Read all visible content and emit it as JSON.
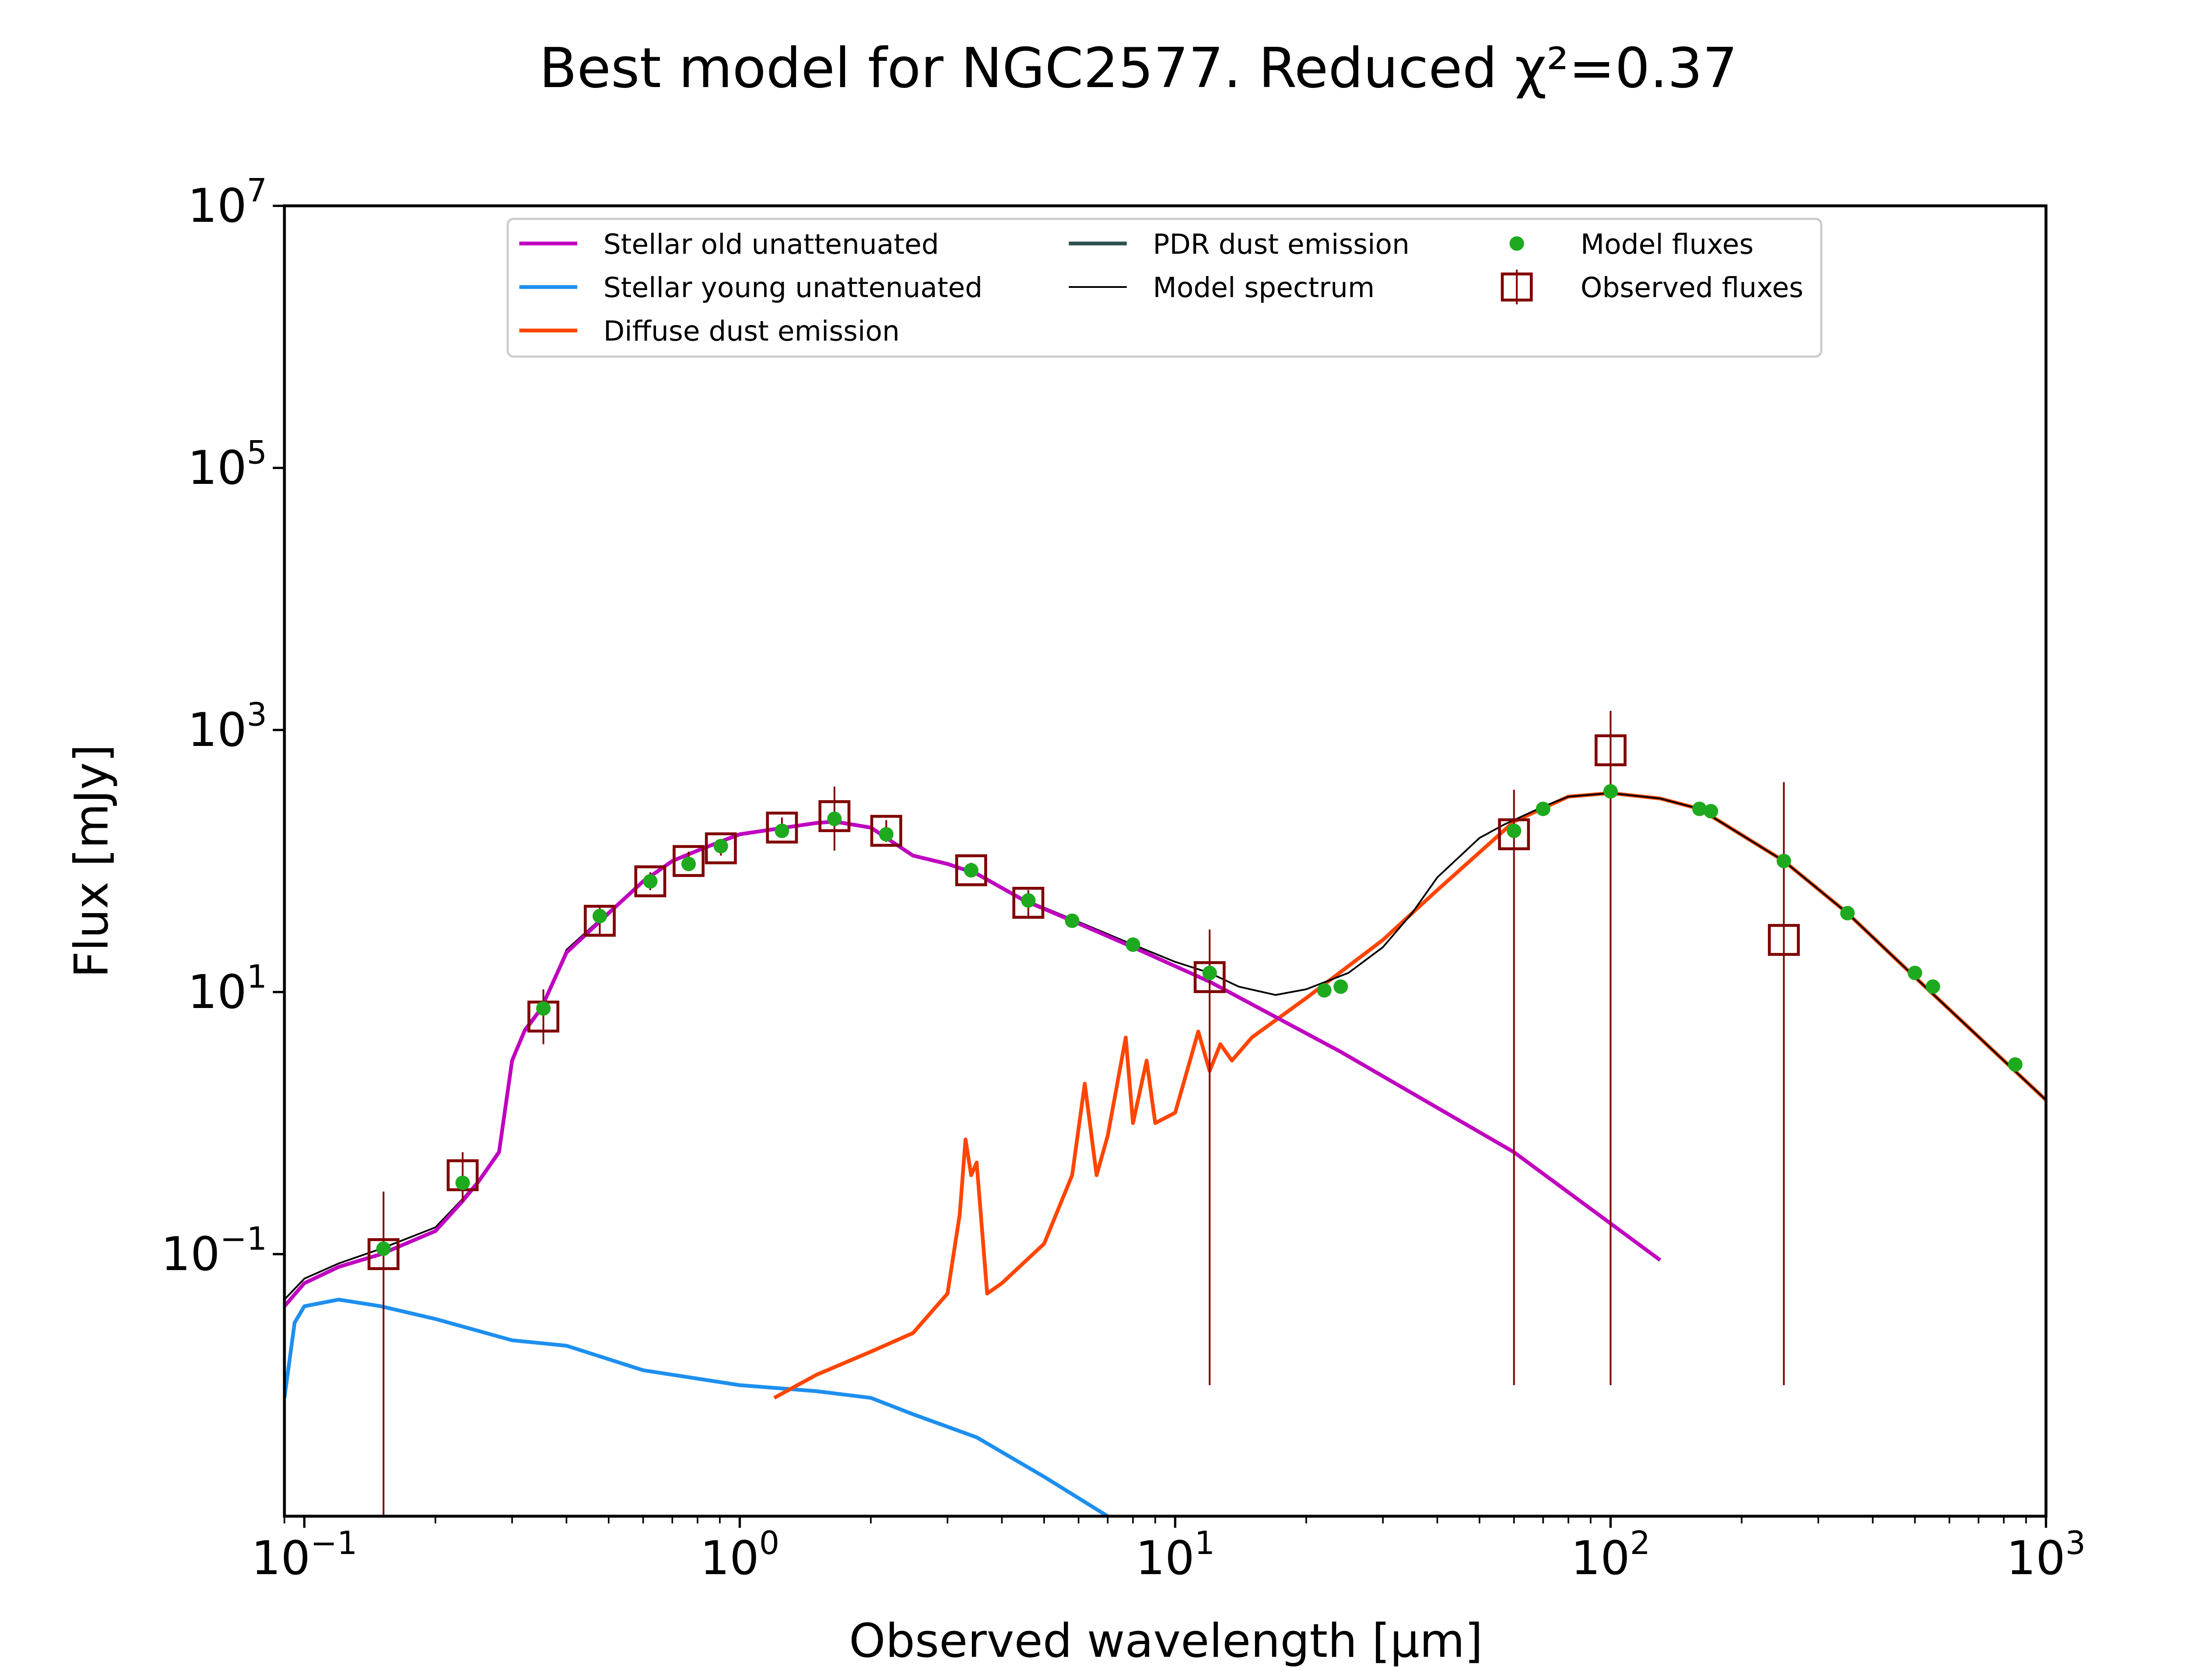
{
  "chart_data": {
    "type": "line",
    "title": "Best model for NGC2577. Reduced χ²=0.37",
    "xlabel": "Observed wavelength [μm]",
    "ylabel": "Flux [mJy]",
    "xscale": "log",
    "yscale": "log",
    "xlim": [
      0.09,
      1000
    ],
    "ylim": [
      0.001,
      10000000
    ],
    "grid": false,
    "legend_position": "top-center",
    "x_ticks": [
      {
        "value": 0.1,
        "base": "10",
        "exp": "−1"
      },
      {
        "value": 1,
        "base": "10",
        "exp": "0"
      },
      {
        "value": 10,
        "base": "10",
        "exp": "1"
      },
      {
        "value": 100,
        "base": "10",
        "exp": "2"
      },
      {
        "value": 1000,
        "base": "10",
        "exp": "3"
      }
    ],
    "y_ticks": [
      {
        "value": 0.1,
        "base": "10",
        "exp": "−1"
      },
      {
        "value": 10,
        "base": "10",
        "exp": "1"
      },
      {
        "value": 1000,
        "base": "10",
        "exp": "3"
      },
      {
        "value": 100000,
        "base": "10",
        "exp": "5"
      },
      {
        "value": 10000000,
        "base": "10",
        "exp": "7"
      }
    ],
    "series": [
      {
        "name": "Stellar old unattenuated",
        "color": "#bf00bf",
        "kind": "line",
        "x": [
          0.09,
          0.1,
          0.12,
          0.15,
          0.2,
          0.23,
          0.25,
          0.28,
          0.3,
          0.32,
          0.35,
          0.4,
          0.5,
          0.6,
          0.7,
          0.8,
          0.9,
          1.0,
          1.2,
          1.5,
          1.65,
          2.0,
          2.5,
          3.0,
          3.5,
          4.5,
          5.8,
          8,
          12,
          24,
          60,
          130
        ],
        "y": [
          0.04,
          0.06,
          0.08,
          0.1,
          0.15,
          0.25,
          0.35,
          0.6,
          3.0,
          5.0,
          7.5,
          20,
          40,
          70,
          100,
          120,
          140,
          160,
          175,
          195,
          200,
          180,
          110,
          95,
          80,
          50,
          35,
          22,
          12,
          3.5,
          0.6,
          0.09
        ]
      },
      {
        "name": "Stellar young unattenuated",
        "color": "#1e8fef",
        "kind": "line",
        "x": [
          0.09,
          0.095,
          0.1,
          0.12,
          0.15,
          0.2,
          0.3,
          0.4,
          0.6,
          1.0,
          1.5,
          2.0,
          2.5,
          3.5,
          5.0,
          7.0
        ],
        "y": [
          0.008,
          0.03,
          0.04,
          0.045,
          0.04,
          0.032,
          0.022,
          0.02,
          0.013,
          0.01,
          0.009,
          0.008,
          0.006,
          0.004,
          0.002,
          0.001
        ]
      },
      {
        "name": "Diffuse dust emission",
        "color": "#ff4500",
        "kind": "line",
        "x": [
          1.2,
          1.5,
          2.0,
          2.5,
          3.0,
          3.2,
          3.3,
          3.4,
          3.5,
          3.7,
          4.0,
          5.0,
          5.8,
          6.2,
          6.6,
          7.0,
          7.7,
          8.0,
          8.6,
          9.0,
          10.0,
          11.3,
          12.0,
          12.7,
          13.5,
          15,
          20,
          30,
          40,
          60,
          80,
          100,
          130,
          160,
          250,
          350,
          500,
          800,
          1000
        ],
        "y": [
          0.008,
          0.012,
          0.018,
          0.025,
          0.05,
          0.2,
          0.75,
          0.4,
          0.5,
          0.05,
          0.06,
          0.12,
          0.4,
          2.0,
          0.4,
          0.8,
          4.5,
          1.0,
          3.0,
          1.0,
          1.2,
          5.0,
          2.5,
          4.0,
          3.0,
          4.5,
          9.0,
          25,
          60,
          200,
          310,
          330,
          300,
          250,
          100,
          40,
          13,
          3.0,
          1.5
        ]
      },
      {
        "name": "PDR dust emission",
        "color": "#2f4f4f",
        "kind": "line",
        "x": [],
        "y": []
      },
      {
        "name": "Model spectrum",
        "color": "#000000",
        "kind": "line",
        "x": [
          0.09,
          0.1,
          0.12,
          0.15,
          0.2,
          0.23,
          0.25,
          0.28,
          0.3,
          0.32,
          0.35,
          0.4,
          0.5,
          0.6,
          0.7,
          0.8,
          0.9,
          1.0,
          1.2,
          1.5,
          1.65,
          2.0,
          2.5,
          3.0,
          3.5,
          4.5,
          5.8,
          8.0,
          10.0,
          12.0,
          14.0,
          17.0,
          20.0,
          25.0,
          30.0,
          35.0,
          40.0,
          50.0,
          57.0,
          70.0,
          80.0,
          100.0,
          130.0,
          160.0,
          250.0,
          350.0,
          500.0,
          800.0,
          1000.0
        ],
        "y": [
          0.045,
          0.065,
          0.085,
          0.11,
          0.16,
          0.26,
          0.36,
          0.62,
          3.1,
          5.2,
          7.7,
          21,
          41,
          71,
          101,
          121,
          141,
          161,
          176,
          196,
          201,
          181,
          111,
          96,
          81,
          51,
          36,
          23,
          17,
          14,
          11,
          9.5,
          10.5,
          14,
          22,
          40,
          75,
          150,
          190,
          260,
          310,
          330,
          300,
          250,
          100,
          40,
          13,
          3.0,
          1.5
        ]
      },
      {
        "name": "Model fluxes",
        "color": "#1eaa1e",
        "kind": "scatter",
        "x": [
          0.152,
          0.231,
          0.354,
          0.477,
          0.623,
          0.763,
          0.905,
          1.25,
          1.65,
          2.17,
          3.4,
          4.6,
          5.8,
          8.0,
          12,
          22,
          24,
          60,
          70,
          100,
          160,
          170,
          250,
          350,
          500,
          550,
          850
        ],
        "y": [
          0.11,
          0.35,
          7.5,
          38,
          70,
          95,
          130,
          170,
          210,
          160,
          85,
          50,
          35,
          23,
          14,
          10.3,
          11,
          170,
          250,
          340,
          250,
          240,
          100,
          40,
          14,
          11,
          2.8
        ]
      },
      {
        "name": "Observed fluxes",
        "color": "#800000",
        "kind": "errorbar",
        "x": [
          0.152,
          0.231,
          0.354,
          0.477,
          0.623,
          0.763,
          0.905,
          1.25,
          1.65,
          2.17,
          3.4,
          4.6,
          12,
          60,
          100,
          250
        ],
        "y": [
          0.1,
          0.4,
          6.5,
          35,
          70,
          100,
          125,
          180,
          220,
          170,
          85,
          48,
          13,
          160,
          700,
          25
        ],
        "yerr": [
          [
            0.1,
            0.15,
            2.5,
            8,
            10,
            15,
            15,
            30,
            100,
            30,
            10,
            10,
            12.99,
            159.99,
            699.99,
            24.99
          ],
          [
            0.2,
            0.2,
            4,
            10,
            12,
            18,
            18,
            35,
            150,
            35,
            12,
            12,
            17,
            190,
            700,
            375
          ]
        ]
      }
    ]
  },
  "legend": {
    "items": [
      {
        "label": "Stellar old unattenuated",
        "color": "#bf00bf",
        "marker": "line"
      },
      {
        "label": "Stellar young unattenuated",
        "color": "#1e8fef",
        "marker": "line"
      },
      {
        "label": "Diffuse dust emission",
        "color": "#ff4500",
        "marker": "line"
      },
      {
        "label": "PDR dust emission",
        "color": "#2f4f4f",
        "marker": "line"
      },
      {
        "label": "Model spectrum",
        "color": "#000000",
        "marker": "thin-line"
      },
      {
        "label": "Model fluxes",
        "color": "#1eaa1e",
        "marker": "dot"
      },
      {
        "label": "Observed fluxes",
        "color": "#800000",
        "marker": "square"
      }
    ]
  }
}
